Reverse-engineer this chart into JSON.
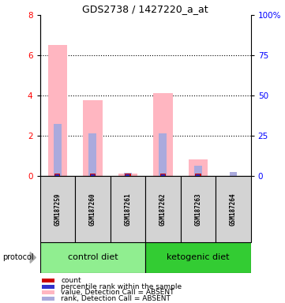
{
  "title": "GDS2738 / 1427220_a_at",
  "samples": [
    "GSM187259",
    "GSM187260",
    "GSM187261",
    "GSM187262",
    "GSM187263",
    "GSM187264"
  ],
  "pink_bars": [
    6.5,
    3.75,
    0.12,
    4.1,
    0.82,
    0.0
  ],
  "blue_bars": [
    2.6,
    2.1,
    0.15,
    2.1,
    0.5,
    0.2
  ],
  "red_dots": [
    true,
    true,
    true,
    true,
    true,
    false
  ],
  "ylim_left": [
    0,
    8
  ],
  "ylim_right": [
    0,
    100
  ],
  "yticks_left": [
    0,
    2,
    4,
    6,
    8
  ],
  "yticks_right": [
    0,
    25,
    50,
    75,
    100
  ],
  "ytick_labels_right": [
    "0",
    "25",
    "50",
    "75",
    "100%"
  ],
  "bar_width": 0.55,
  "blue_bar_width": 0.22,
  "bg_color": "#d3d3d3",
  "pink_color": "#ffb6c1",
  "blue_color": "#aaaadd",
  "red_color": "#cc0000",
  "dark_blue_color": "#3333cc",
  "light_green": "#90ee90",
  "dark_green": "#33cc33",
  "grid_color": "#000000",
  "legend_items": [
    {
      "color": "#cc0000",
      "label": "count"
    },
    {
      "color": "#3333cc",
      "label": "percentile rank within the sample"
    },
    {
      "color": "#ffb6c1",
      "label": "value, Detection Call = ABSENT"
    },
    {
      "color": "#aaaadd",
      "label": "rank, Detection Call = ABSENT"
    }
  ]
}
